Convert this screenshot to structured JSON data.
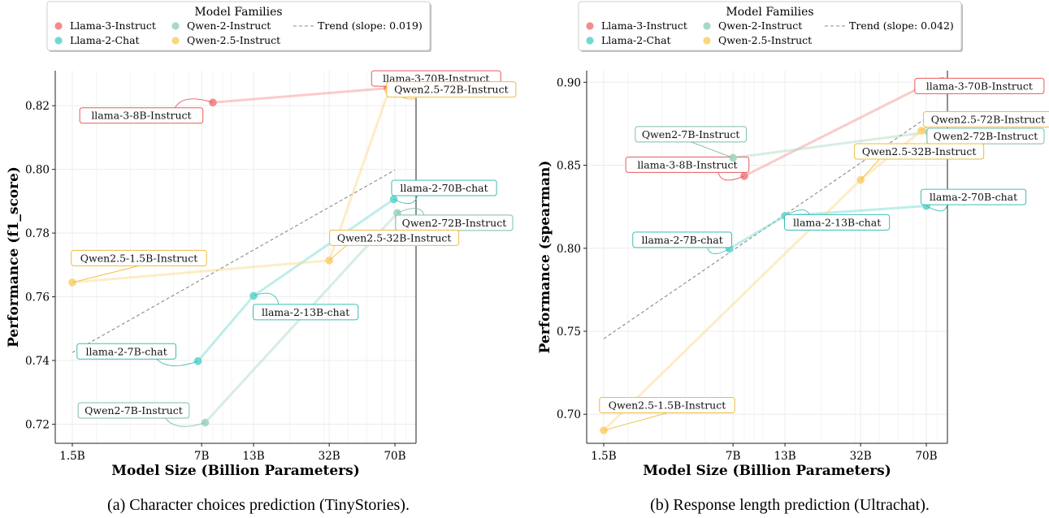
{
  "chart_data": [
    {
      "type": "line",
      "caption": "(a) Character choices prediction (TinyStories).",
      "xlabel": "Model Size (Billion Parameters)",
      "ylabel": "Performance (f1_score)",
      "ylim": [
        0.714,
        0.831
      ],
      "yticks": [
        0.72,
        0.74,
        0.76,
        0.78,
        0.8,
        0.82
      ],
      "ytick_labels": [
        "0.72",
        "0.74",
        "0.76",
        "0.78",
        "0.80",
        "0.82"
      ],
      "xticks": [
        1.5,
        7,
        13,
        32,
        70
      ],
      "xtick_labels": [
        "1.5B",
        "7B",
        "13B",
        "32B",
        "70B"
      ],
      "xlim": [
        1.5,
        90
      ],
      "x_scale": "log",
      "grid": true,
      "legend_title": "Model Families",
      "legend_placement": "top",
      "trend": {
        "label": "Trend (slope: 0.019)",
        "x": [
          1.5,
          70
        ],
        "y": [
          0.7425,
          0.7998
        ]
      },
      "series": [
        {
          "name": "Llama-3-Instruct",
          "color": "#f48c8c",
          "points": [
            {
              "x": 8,
              "y": 0.821,
              "label": "llama-3-8B-Instruct"
            },
            {
              "x": 64,
              "y": 0.8255,
              "label": "llama-3-70B-Instruct"
            }
          ]
        },
        {
          "name": "Llama-2-Chat",
          "color": "#6fd9d2",
          "points": [
            {
              "x": 6.7,
              "y": 0.7398,
              "label": "llama-2-7B-chat"
            },
            {
              "x": 13,
              "y": 0.7603,
              "label": "llama-2-13B-chat"
            },
            {
              "x": 69,
              "y": 0.7906,
              "label": "llama-2-70B-chat"
            }
          ]
        },
        {
          "name": "Qwen-2-Instruct",
          "color": "#a9d8c3",
          "points": [
            {
              "x": 7.3,
              "y": 0.7205,
              "label": "Qwen2-7B-Instruct"
            },
            {
              "x": 72,
              "y": 0.7863,
              "label": "Qwen2-72B-Instruct"
            }
          ]
        },
        {
          "name": "Qwen-2.5-Instruct",
          "color": "#fbd680",
          "points": [
            {
              "x": 1.5,
              "y": 0.7645,
              "label": "Qwen2.5-1.5B-Instruct"
            },
            {
              "x": 32,
              "y": 0.7714,
              "label": "Qwen2.5-32B-Instruct"
            },
            {
              "x": 65,
              "y": 0.8246,
              "label": "Qwen2.5-72B-Instruct"
            }
          ]
        }
      ]
    },
    {
      "type": "line",
      "caption": "(b) Response length prediction (Ultrachat).",
      "xlabel": "Model Size (Billion Parameters)",
      "ylabel": "Performance (spearman)",
      "ylim": [
        0.6825,
        0.907
      ],
      "yticks": [
        0.7,
        0.75,
        0.8,
        0.85,
        0.9
      ],
      "ytick_labels": [
        "0.70",
        "0.75",
        "0.80",
        "0.85",
        "0.90"
      ],
      "xticks": [
        1.5,
        7,
        13,
        32,
        70
      ],
      "xtick_labels": [
        "1.5B",
        "7B",
        "13B",
        "32B",
        "70B"
      ],
      "xlim": [
        1.5,
        90
      ],
      "x_scale": "log",
      "grid": true,
      "legend_title": "Model Families",
      "legend_placement": "top",
      "trend": {
        "label": "Trend (slope: 0.042)",
        "x": [
          1.5,
          70
        ],
        "y": [
          0.7455,
          0.8785
        ]
      },
      "series": [
        {
          "name": "Llama-3-Instruct",
          "color": "#f48c8c",
          "points": [
            {
              "x": 8,
              "y": 0.8435,
              "label": "llama-3-8B-Instruct"
            },
            {
              "x": 65,
              "y": 0.8968,
              "label": "llama-3-70B-Instruct"
            }
          ]
        },
        {
          "name": "Llama-2-Chat",
          "color": "#6fd9d2",
          "points": [
            {
              "x": 6.7,
              "y": 0.7997,
              "label": "llama-2-7B-chat"
            },
            {
              "x": 13,
              "y": 0.8195,
              "label": "llama-2-13B-chat"
            },
            {
              "x": 70,
              "y": 0.8255,
              "label": "llama-2-70B-chat"
            }
          ]
        },
        {
          "name": "Qwen-2-Instruct",
          "color": "#a9d8c3",
          "points": [
            {
              "x": 7,
              "y": 0.8545,
              "label": "Qwen2-7B-Instruct"
            },
            {
              "x": 72,
              "y": 0.87,
              "label": "Qwen2-72B-Instruct"
            }
          ]
        },
        {
          "name": "Qwen-2.5-Instruct",
          "color": "#fbd680",
          "points": [
            {
              "x": 1.5,
              "y": 0.6903,
              "label": "Qwen2.5-1.5B-Instruct"
            },
            {
              "x": 32,
              "y": 0.8412,
              "label": "Qwen2.5-32B-Instruct"
            },
            {
              "x": 66,
              "y": 0.8708,
              "label": "Qwen2.5-72B-Instruct"
            }
          ]
        }
      ]
    }
  ]
}
